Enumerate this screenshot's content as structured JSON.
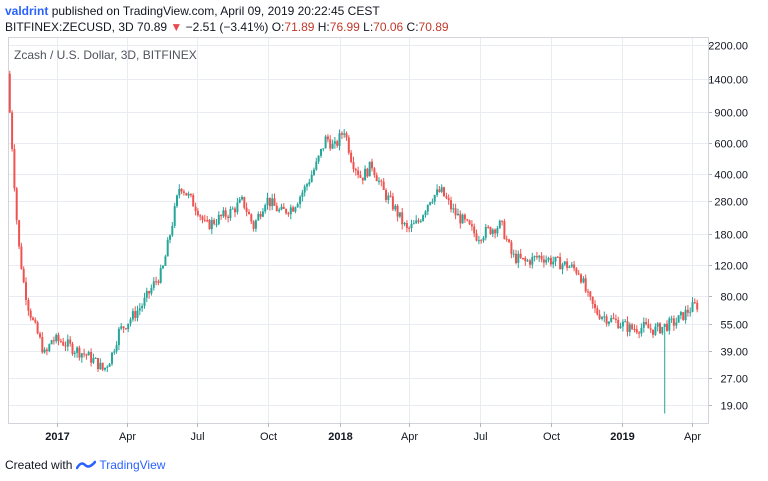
{
  "header": {
    "author": "valdrint",
    "published": "published on TradingView.com, April 09, 2019 20:22:45 CEST"
  },
  "symbol_bar": {
    "symbol": "BITFINEX:ZECUSD, 3D",
    "last": "70.89",
    "change_arrow": "▼",
    "change": "−2.51 (−3.41%)",
    "o_label": "O:",
    "o_value": "71.89",
    "h_label": "H:",
    "h_value": "76.99",
    "l_label": "L:",
    "l_value": "70.06",
    "c_label": "C:",
    "c_value": "70.89"
  },
  "footer": {
    "created_with": "Created with",
    "brand": "TradingView"
  },
  "colors": {
    "up": "#26a69a",
    "down": "#ef5350",
    "grid": "#e9ecf2",
    "axis_text": "#131722"
  },
  "chart_data": {
    "type": "candlestick",
    "title": "Zcash / U.S. Dollar, 3D, BITFINEX",
    "y_scale": "log",
    "ylim": [
      15,
      2400
    ],
    "y_ticks": [
      "2200.00",
      "1400.00",
      "900.00",
      "600.00",
      "400.00",
      "280.00",
      "180.00",
      "120.00",
      "80.00",
      "55.00",
      "39.00",
      "27.00",
      "19.00"
    ],
    "x_ticks": [
      "2017",
      "Apr",
      "Jul",
      "Oct",
      "2018",
      "Apr",
      "Jul",
      "Oct",
      "2019",
      "Apr"
    ],
    "grid": true,
    "series": [
      {
        "name": "ZECUSD",
        "points": [
          [
            "2016-11-01",
            1500
          ],
          [
            "2016-11-04",
            900
          ],
          [
            "2016-11-08",
            500
          ],
          [
            "2016-11-12",
            250
          ],
          [
            "2016-11-16",
            150
          ],
          [
            "2016-11-22",
            95
          ],
          [
            "2016-11-28",
            70
          ],
          [
            "2016-12-05",
            55
          ],
          [
            "2016-12-12",
            46
          ],
          [
            "2016-12-20",
            36
          ],
          [
            "2016-12-28",
            45
          ],
          [
            "2017-01-10",
            44
          ],
          [
            "2017-01-25",
            40
          ],
          [
            "2017-02-10",
            37
          ],
          [
            "2017-02-25",
            33
          ],
          [
            "2017-03-05",
            30
          ],
          [
            "2017-03-15",
            36
          ],
          [
            "2017-03-25",
            50
          ],
          [
            "2017-04-10",
            60
          ],
          [
            "2017-04-25",
            72
          ],
          [
            "2017-05-10",
            95
          ],
          [
            "2017-05-20",
            110
          ],
          [
            "2017-06-01",
            200
          ],
          [
            "2017-06-12",
            350
          ],
          [
            "2017-06-22",
            300
          ],
          [
            "2017-07-05",
            250
          ],
          [
            "2017-07-15",
            200
          ],
          [
            "2017-07-30",
            220
          ],
          [
            "2017-08-15",
            240
          ],
          [
            "2017-09-01",
            280
          ],
          [
            "2017-09-15",
            200
          ],
          [
            "2017-10-01",
            290
          ],
          [
            "2017-10-20",
            240
          ],
          [
            "2017-11-05",
            260
          ],
          [
            "2017-11-20",
            330
          ],
          [
            "2017-12-05",
            450
          ],
          [
            "2017-12-18",
            650
          ],
          [
            "2017-12-28",
            560
          ],
          [
            "2018-01-10",
            720
          ],
          [
            "2018-01-20",
            480
          ],
          [
            "2018-02-01",
            380
          ],
          [
            "2018-02-15",
            450
          ],
          [
            "2018-03-01",
            320
          ],
          [
            "2018-03-15",
            260
          ],
          [
            "2018-04-01",
            190
          ],
          [
            "2018-04-15",
            210
          ],
          [
            "2018-05-01",
            290
          ],
          [
            "2018-05-15",
            320
          ],
          [
            "2018-06-01",
            240
          ],
          [
            "2018-06-15",
            210
          ],
          [
            "2018-07-01",
            175
          ],
          [
            "2018-07-15",
            190
          ],
          [
            "2018-08-01",
            205
          ],
          [
            "2018-08-15",
            135
          ],
          [
            "2018-09-01",
            125
          ],
          [
            "2018-09-20",
            135
          ],
          [
            "2018-10-10",
            125
          ],
          [
            "2018-10-25",
            120
          ],
          [
            "2018-11-10",
            110
          ],
          [
            "2018-11-20",
            80
          ],
          [
            "2018-12-01",
            65
          ],
          [
            "2018-12-15",
            60
          ],
          [
            "2019-01-01",
            56
          ],
          [
            "2019-01-15",
            52
          ],
          [
            "2019-02-01",
            53
          ],
          [
            "2019-02-15",
            51
          ],
          [
            "2019-03-01",
            54
          ],
          [
            "2019-03-15",
            57
          ],
          [
            "2019-04-01",
            67
          ],
          [
            "2019-04-09",
            70.89
          ]
        ],
        "low_spike": [
          "2019-02-24",
          17
        ]
      }
    ]
  }
}
